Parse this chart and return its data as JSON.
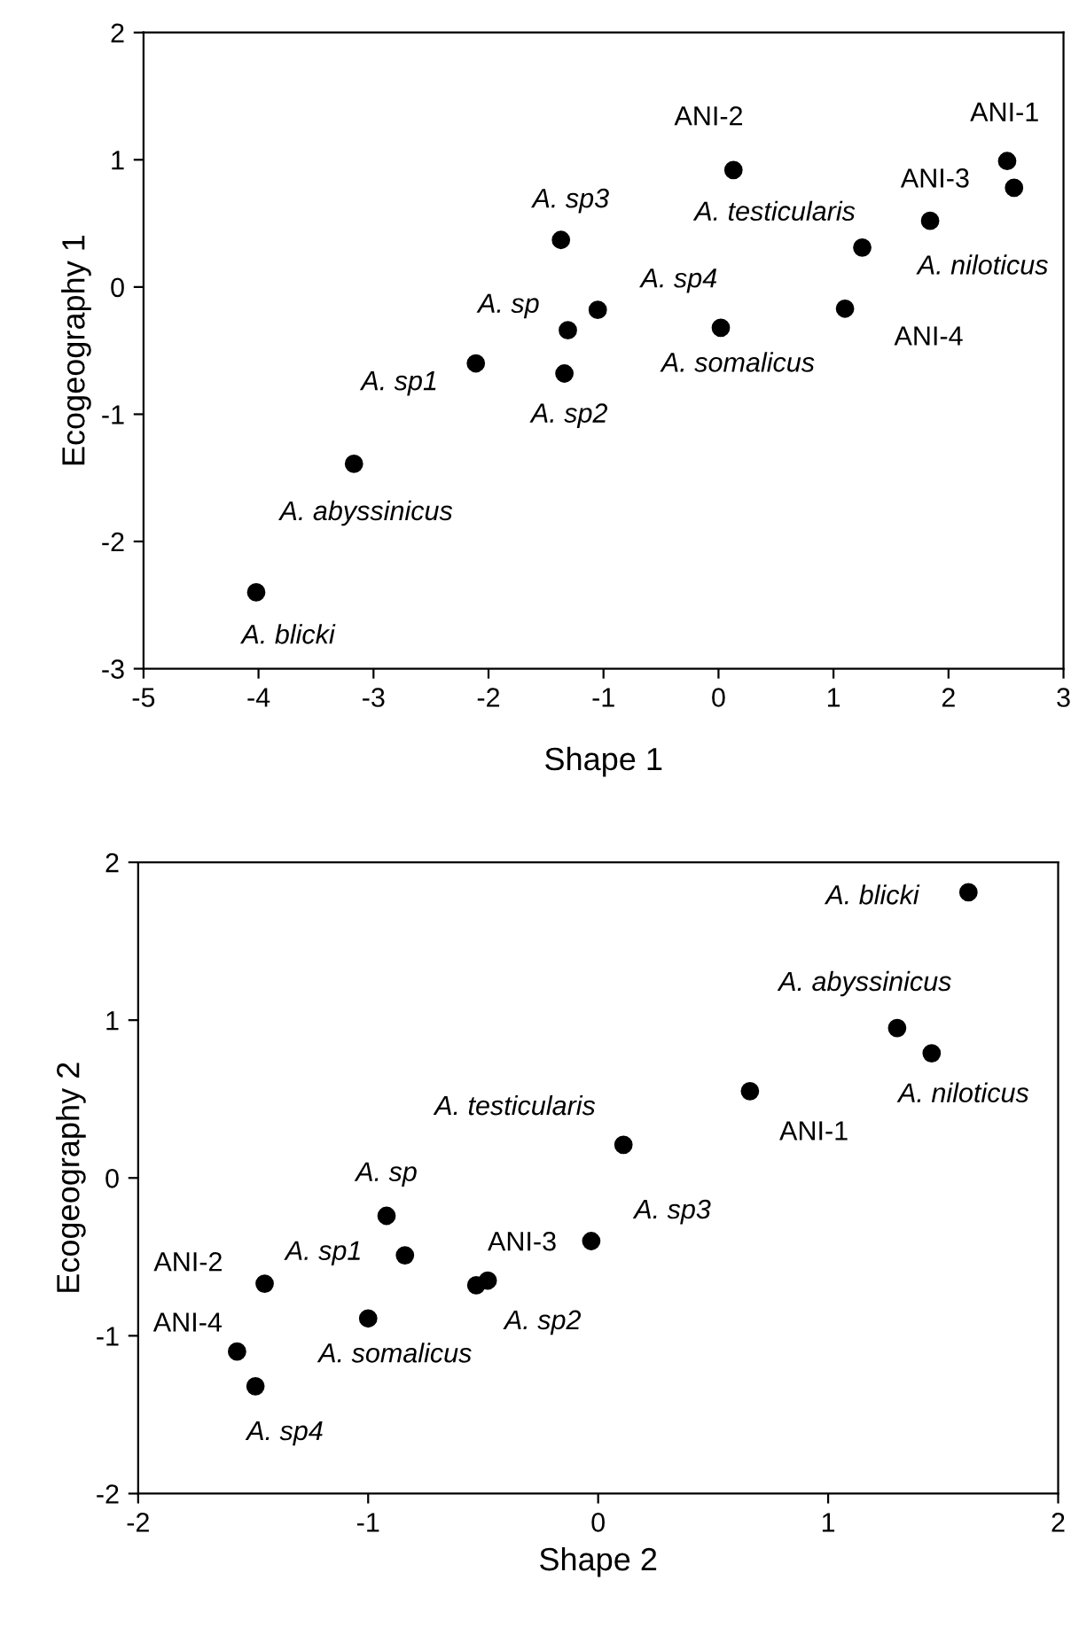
{
  "chart_data": [
    {
      "type": "scatter",
      "xlabel": "Shape 1",
      "ylabel": "Ecogeography 1",
      "marker": "circle",
      "grid": false,
      "legend": false,
      "xlim": [
        -5,
        3
      ],
      "ylim": [
        -3,
        2
      ],
      "xticks": [
        -5,
        -4,
        -3,
        -2,
        -1,
        0,
        1,
        2,
        3
      ],
      "yticks": [
        -3,
        -2,
        -1,
        0,
        1,
        2
      ],
      "series": [
        {
          "color": "#000000",
          "x": [
            -4.02,
            -3.17,
            -2.11,
            -1.37,
            -1.31,
            -1.34,
            -1.05,
            0.02,
            0.13,
            1.1,
            1.25,
            1.84,
            2.51,
            2.57
          ],
          "values": [
            -2.4,
            -1.39,
            -0.6,
            0.37,
            -0.34,
            -0.68,
            -0.18,
            -0.32,
            0.92,
            -0.17,
            0.31,
            0.52,
            0.99,
            0.78
          ]
        }
      ],
      "annotations": [
        {
          "text": "A. blicki",
          "x": -4.02,
          "y": -2.4
        },
        {
          "text": "A. abyssinicus",
          "x": -3.17,
          "y": -1.39
        },
        {
          "text": "A. sp1",
          "x": -2.11,
          "y": -0.6
        },
        {
          "text": "A. sp3",
          "x": -1.37,
          "y": 0.37
        },
        {
          "text": "A. sp",
          "x": -1.31,
          "y": -0.34
        },
        {
          "text": "A. sp2",
          "x": -1.34,
          "y": -0.68
        },
        {
          "text": "A. sp4",
          "x": -1.05,
          "y": -0.18
        },
        {
          "text": "A. somalicus",
          "x": 0.02,
          "y": -0.32
        },
        {
          "text": "ANI-2",
          "x": 0.13,
          "y": 0.92
        },
        {
          "text": "ANI-4",
          "x": 1.1,
          "y": -0.17
        },
        {
          "text": "A. niloticus",
          "x": 1.25,
          "y": 0.31
        },
        {
          "text": "A. testicularis",
          "x": 1.84,
          "y": 0.52
        },
        {
          "text": "ANI-1",
          "x": 2.51,
          "y": 0.99
        },
        {
          "text": "ANI-3",
          "x": 2.57,
          "y": 0.78
        }
      ]
    },
    {
      "type": "scatter",
      "xlabel": "Shape 2",
      "ylabel": "Ecogeography 2",
      "marker": "circle",
      "grid": false,
      "legend": false,
      "xlim": [
        -2,
        2
      ],
      "ylim": [
        -2,
        2
      ],
      "xticks": [
        -2,
        -1,
        0,
        1,
        2
      ],
      "yticks": [
        -2,
        -1,
        0,
        1,
        2
      ],
      "series": [
        {
          "color": "#000000",
          "x": [
            1.61,
            1.3,
            1.45,
            0.66,
            0.11,
            -0.03,
            -0.92,
            -0.84,
            -0.48,
            -0.53,
            -1.45,
            -1.0,
            -1.57,
            -1.49
          ],
          "values": [
            1.81,
            0.95,
            0.79,
            0.55,
            0.21,
            -0.4,
            -0.24,
            -0.49,
            -0.65,
            -0.68,
            -0.67,
            -0.89,
            -1.1,
            -1.32
          ]
        }
      ],
      "annotations": [
        {
          "text": "A. blicki",
          "x": 1.61,
          "y": 1.81
        },
        {
          "text": "A. abyssinicus",
          "x": 1.3,
          "y": 0.95
        },
        {
          "text": "A. niloticus",
          "x": 1.45,
          "y": 0.79
        },
        {
          "text": "ANI-1",
          "x": 0.66,
          "y": 0.55
        },
        {
          "text": "A. testicularis",
          "x": 0.11,
          "y": 0.21
        },
        {
          "text": "A. sp3",
          "x": -0.03,
          "y": -0.4
        },
        {
          "text": "A. sp",
          "x": -0.92,
          "y": -0.24
        },
        {
          "text": "A. sp1",
          "x": -0.84,
          "y": -0.49
        },
        {
          "text": "ANI-3",
          "x": -0.48,
          "y": -0.65
        },
        {
          "text": "A. sp2",
          "x": -0.53,
          "y": -0.68
        },
        {
          "text": "ANI-2",
          "x": -1.45,
          "y": -0.67
        },
        {
          "text": "A. somalicus",
          "x": -1.0,
          "y": -0.89
        },
        {
          "text": "ANI-4",
          "x": -1.57,
          "y": -1.1
        },
        {
          "text": "A. sp4",
          "x": -1.49,
          "y": -1.32
        }
      ]
    }
  ]
}
